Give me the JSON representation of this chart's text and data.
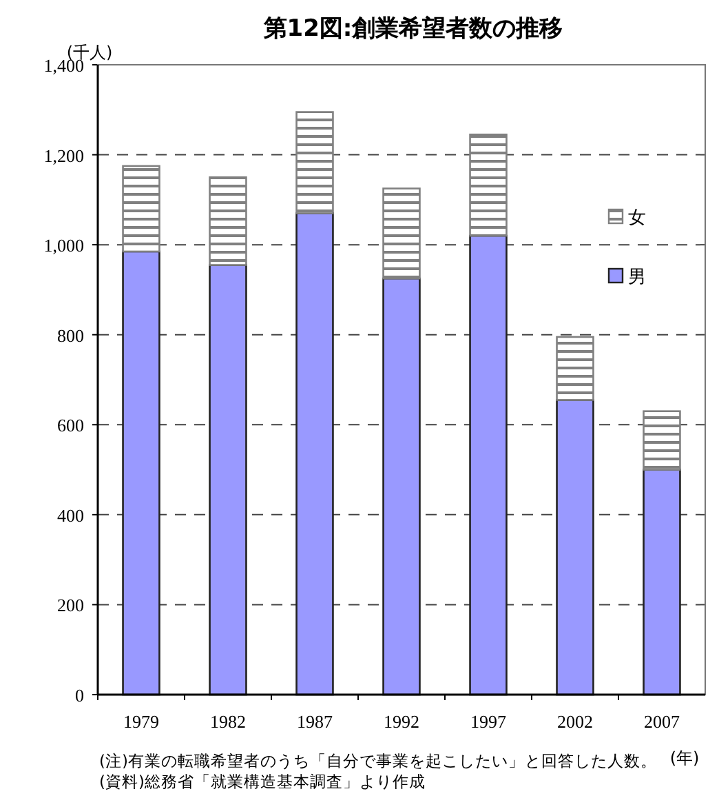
{
  "chart_data": {
    "type": "bar",
    "title": "第12図:創業希望者数の推移",
    "ylabel": "(千人)",
    "xlabel": "(年)",
    "categories": [
      "1979",
      "1982",
      "1987",
      "1992",
      "1997",
      "2002",
      "2007"
    ],
    "stacked": true,
    "series": [
      {
        "name": "男",
        "color": "#9999ff",
        "values": [
          985,
          955,
          1070,
          925,
          1020,
          655,
          500
        ]
      },
      {
        "name": "女",
        "color": "#808080",
        "values": [
          190,
          195,
          225,
          200,
          225,
          140,
          130
        ]
      }
    ],
    "ylim": [
      0,
      1400
    ],
    "yticks": [
      0,
      200,
      400,
      600,
      800,
      {
        "value": 1000,
        "label": "1,000"
      },
      {
        "value": 1200,
        "label": "1,200"
      },
      {
        "value": 1400,
        "label": "1,400"
      }
    ],
    "grid": "y",
    "legend": "top right",
    "annotations": [
      "(注)有業の転職希望者のうち「自分で事業を起こしたい」と回答した人数。",
      "(資料)総務省「就業構造基本調査」より作成"
    ]
  }
}
